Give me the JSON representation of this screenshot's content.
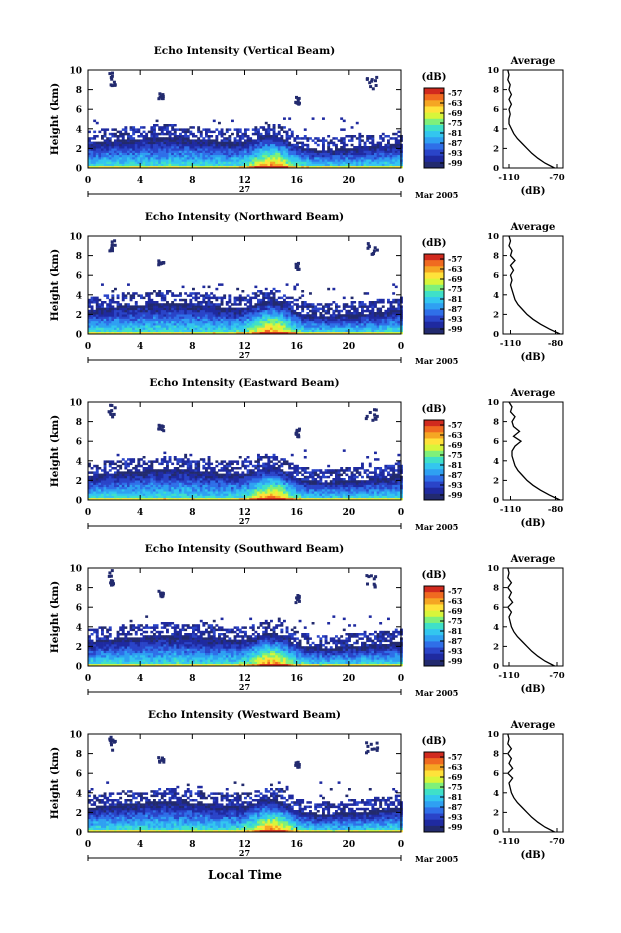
{
  "page": {
    "xlabel": "Local Time",
    "date_label": "Mar 2005",
    "date_tick": "27"
  },
  "colorbar": {
    "unit": "(dB)",
    "ticks": [
      "-57",
      "-63",
      "-69",
      "-75",
      "-81",
      "-87",
      "-93",
      "-99"
    ],
    "colors": [
      "#d12a1e",
      "#f06a20",
      "#f5a623",
      "#ffe23a",
      "#d8f53a",
      "#7ff07a",
      "#3fe0c8",
      "#33c6ef",
      "#2fa0f2",
      "#2f6fe8",
      "#2a44c8",
      "#1f2aa0",
      "#222a6e"
    ]
  },
  "chart_data": [
    {
      "type": "heatmap",
      "title": "Echo Intensity (Vertical Beam)",
      "ylabel": "Height (km)",
      "xlabel": "",
      "x_ticks": [
        "0",
        "4",
        "8",
        "12",
        "16",
        "20",
        "0"
      ],
      "y_ticks": [
        "0",
        "2",
        "4",
        "6",
        "8",
        "10"
      ],
      "xlim": [
        0,
        24
      ],
      "ylim": [
        0,
        10
      ],
      "zlim": [
        -99,
        -57
      ],
      "zunit": "dB",
      "grid": false,
      "average_profile": {
        "title": "Average",
        "xlabel": "(dB)",
        "xticks": [
          "-110",
          "-70"
        ],
        "xlim": [
          -115,
          -65
        ],
        "height_km": [
          0,
          0.5,
          1,
          1.5,
          2,
          2.5,
          3,
          3.5,
          4,
          4.5,
          5,
          5.5,
          6,
          6.5,
          7,
          7.5,
          8,
          8.5,
          9,
          9.5,
          10
        ],
        "db": [
          -72,
          -80,
          -86,
          -91,
          -95,
          -99,
          -103,
          -106,
          -108,
          -110,
          -110,
          -109,
          -110,
          -108,
          -110,
          -108,
          -110,
          -109,
          -111,
          -110,
          -111
        ]
      }
    },
    {
      "type": "heatmap",
      "title": "Echo Intensity (Northward Beam)",
      "ylabel": "Height (km)",
      "xlabel": "",
      "x_ticks": [
        "0",
        "4",
        "8",
        "12",
        "16",
        "20",
        "0"
      ],
      "y_ticks": [
        "0",
        "2",
        "4",
        "6",
        "8",
        "10"
      ],
      "xlim": [
        0,
        24
      ],
      "ylim": [
        0,
        10
      ],
      "zlim": [
        -99,
        -57
      ],
      "zunit": "dB",
      "grid": false,
      "average_profile": {
        "title": "Average",
        "xlabel": "(dB)",
        "xticks": [
          "-110",
          "-80"
        ],
        "xlim": [
          -115,
          -75
        ],
        "height_km": [
          0,
          0.5,
          1,
          1.5,
          2,
          2.5,
          3,
          3.5,
          4,
          4.5,
          5,
          5.5,
          6,
          6.5,
          7,
          7.5,
          8,
          8.5,
          9,
          9.5,
          10
        ],
        "db": [
          -77,
          -84,
          -90,
          -95,
          -99,
          -102,
          -105,
          -107,
          -108,
          -109,
          -110,
          -109,
          -110,
          -108,
          -110,
          -107,
          -110,
          -109,
          -111,
          -110,
          -111
        ]
      }
    },
    {
      "type": "heatmap",
      "title": "Echo Intensity (Eastward Beam)",
      "ylabel": "Height (km)",
      "xlabel": "",
      "x_ticks": [
        "0",
        "4",
        "8",
        "12",
        "16",
        "20",
        "0"
      ],
      "y_ticks": [
        "0",
        "2",
        "4",
        "6",
        "8",
        "10"
      ],
      "xlim": [
        0,
        24
      ],
      "ylim": [
        0,
        10
      ],
      "zlim": [
        -99,
        -57
      ],
      "zunit": "dB",
      "grid": false,
      "average_profile": {
        "title": "Average",
        "xlabel": "(dB)",
        "xticks": [
          "-110",
          "-80"
        ],
        "xlim": [
          -115,
          -75
        ],
        "height_km": [
          0,
          0.5,
          1,
          1.5,
          2,
          2.5,
          3,
          3.5,
          4,
          4.5,
          5,
          5.5,
          6,
          6.5,
          7,
          7.5,
          8,
          8.5,
          9,
          9.5,
          10
        ],
        "db": [
          -77,
          -84,
          -90,
          -95,
          -99,
          -102,
          -105,
          -107,
          -108,
          -109,
          -109,
          -107,
          -103,
          -108,
          -104,
          -108,
          -109,
          -107,
          -110,
          -109,
          -111
        ]
      }
    },
    {
      "type": "heatmap",
      "title": "Echo Intensity (Southward Beam)",
      "ylabel": "Height (km)",
      "xlabel": "",
      "x_ticks": [
        "0",
        "4",
        "8",
        "12",
        "16",
        "20",
        "0"
      ],
      "y_ticks": [
        "0",
        "2",
        "4",
        "6",
        "8",
        "10"
      ],
      "xlim": [
        0,
        24
      ],
      "ylim": [
        0,
        10
      ],
      "zlim": [
        -99,
        -57
      ],
      "zunit": "dB",
      "grid": false,
      "average_profile": {
        "title": "Average",
        "xlabel": "(dB)",
        "xticks": [
          "-110",
          "-70"
        ],
        "xlim": [
          -115,
          -65
        ],
        "height_km": [
          0,
          0.5,
          1,
          1.5,
          2,
          2.5,
          3,
          3.5,
          4,
          4.5,
          5,
          5.5,
          6,
          6.5,
          7,
          7.5,
          8,
          8.5,
          9,
          9.5,
          10
        ],
        "db": [
          -72,
          -80,
          -86,
          -91,
          -95,
          -99,
          -103,
          -106,
          -108,
          -109,
          -110,
          -108,
          -111,
          -107,
          -110,
          -108,
          -111,
          -108,
          -111,
          -110,
          -111
        ]
      }
    },
    {
      "type": "heatmap",
      "title": "Echo Intensity (Westward Beam)",
      "ylabel": "Height (km)",
      "xlabel": "",
      "x_ticks": [
        "0",
        "4",
        "8",
        "12",
        "16",
        "20",
        "0"
      ],
      "y_ticks": [
        "0",
        "2",
        "4",
        "6",
        "8",
        "10"
      ],
      "xlim": [
        0,
        24
      ],
      "ylim": [
        0,
        10
      ],
      "zlim": [
        -99,
        -57
      ],
      "zunit": "dB",
      "grid": false,
      "average_profile": {
        "title": "Average",
        "xlabel": "(dB)",
        "xticks": [
          "-110",
          "-70"
        ],
        "xlim": [
          -115,
          -65
        ],
        "height_km": [
          0,
          0.5,
          1,
          1.5,
          2,
          2.5,
          3,
          3.5,
          4,
          4.5,
          5,
          5.5,
          6,
          6.5,
          7,
          7.5,
          8,
          8.5,
          9,
          9.5,
          10
        ],
        "db": [
          -72,
          -80,
          -86,
          -91,
          -95,
          -99,
          -103,
          -106,
          -108,
          -109,
          -110,
          -107,
          -111,
          -107,
          -110,
          -108,
          -111,
          -108,
          -111,
          -110,
          -111
        ]
      }
    }
  ]
}
